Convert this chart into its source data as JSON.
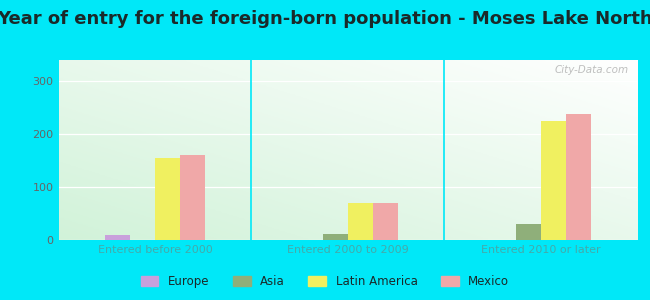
{
  "title": "Year of entry for the foreign-born population - Moses Lake North",
  "categories": [
    "Entered before 2000",
    "Entered 2000 to 2009",
    "Entered 2010 or later"
  ],
  "series": {
    "Europe": [
      10,
      0,
      0
    ],
    "Asia": [
      0,
      12,
      30
    ],
    "Latin America": [
      155,
      70,
      225
    ],
    "Mexico": [
      160,
      70,
      238
    ]
  },
  "colors": {
    "Europe": "#c9a0dc",
    "Asia": "#8faf7a",
    "Latin America": "#f0f060",
    "Mexico": "#f0a8a8"
  },
  "ylim": [
    0,
    340
  ],
  "yticks": [
    0,
    100,
    200,
    300
  ],
  "background_outer": "#00e8f8",
  "title_color": "#1a2a2a",
  "title_fontsize": 13,
  "tick_label_color": "#44aaaa",
  "ytick_label_color": "#666666",
  "watermark": "City-Data.com"
}
